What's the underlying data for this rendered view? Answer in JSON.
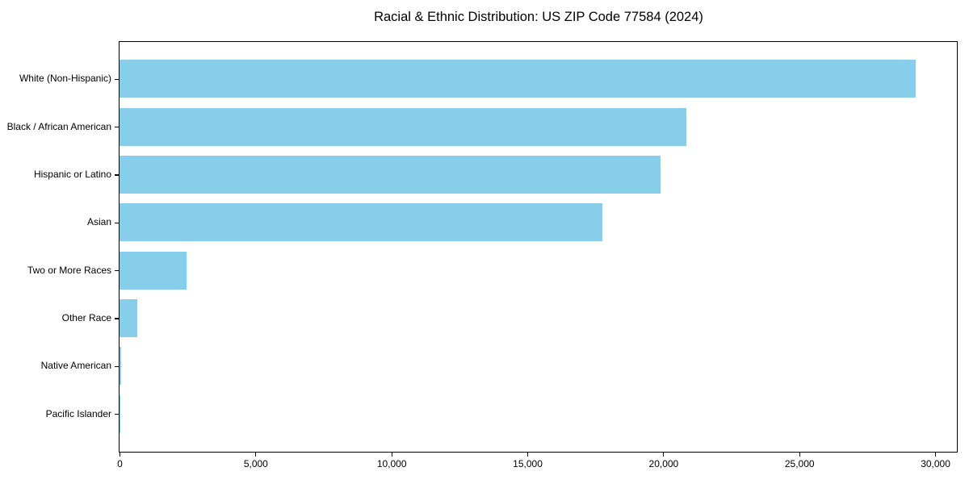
{
  "chart_data": {
    "type": "bar",
    "orientation": "horizontal",
    "title": "Racial & Ethnic Distribution: US ZIP Code 77584 (2024)",
    "categories": [
      "White (Non-Hispanic)",
      "Black / African American",
      "Hispanic or Latino",
      "Asian",
      "Two or More Races",
      "Other Race",
      "Native American",
      "Pacific Islander"
    ],
    "values": [
      29290,
      20860,
      19890,
      17750,
      2460,
      650,
      60,
      15
    ],
    "xlabel": "",
    "ylabel": "",
    "xlim": [
      0,
      30770
    ],
    "x_ticks": [
      0,
      5000,
      10000,
      15000,
      20000,
      25000,
      30000
    ],
    "x_tick_labels": [
      "0",
      "5,000",
      "10,000",
      "15,000",
      "20,000",
      "25,000",
      "30,000"
    ],
    "grid": "off",
    "legend": "none",
    "bar_color": "#87CEEB",
    "spine_color": "#000000",
    "text_color": "#000000"
  }
}
